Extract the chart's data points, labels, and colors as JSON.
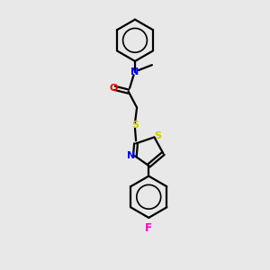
{
  "bg_color": "#e8e8e8",
  "bond_color": "#000000",
  "N_color": "#0000ff",
  "O_color": "#ff0000",
  "S_color": "#cccc00",
  "F_color": "#ff00cc",
  "line_width": 1.6,
  "fig_width": 3.0,
  "fig_height": 3.0,
  "dpi": 100,
  "xlim": [
    0,
    10
  ],
  "ylim": [
    0,
    14
  ]
}
